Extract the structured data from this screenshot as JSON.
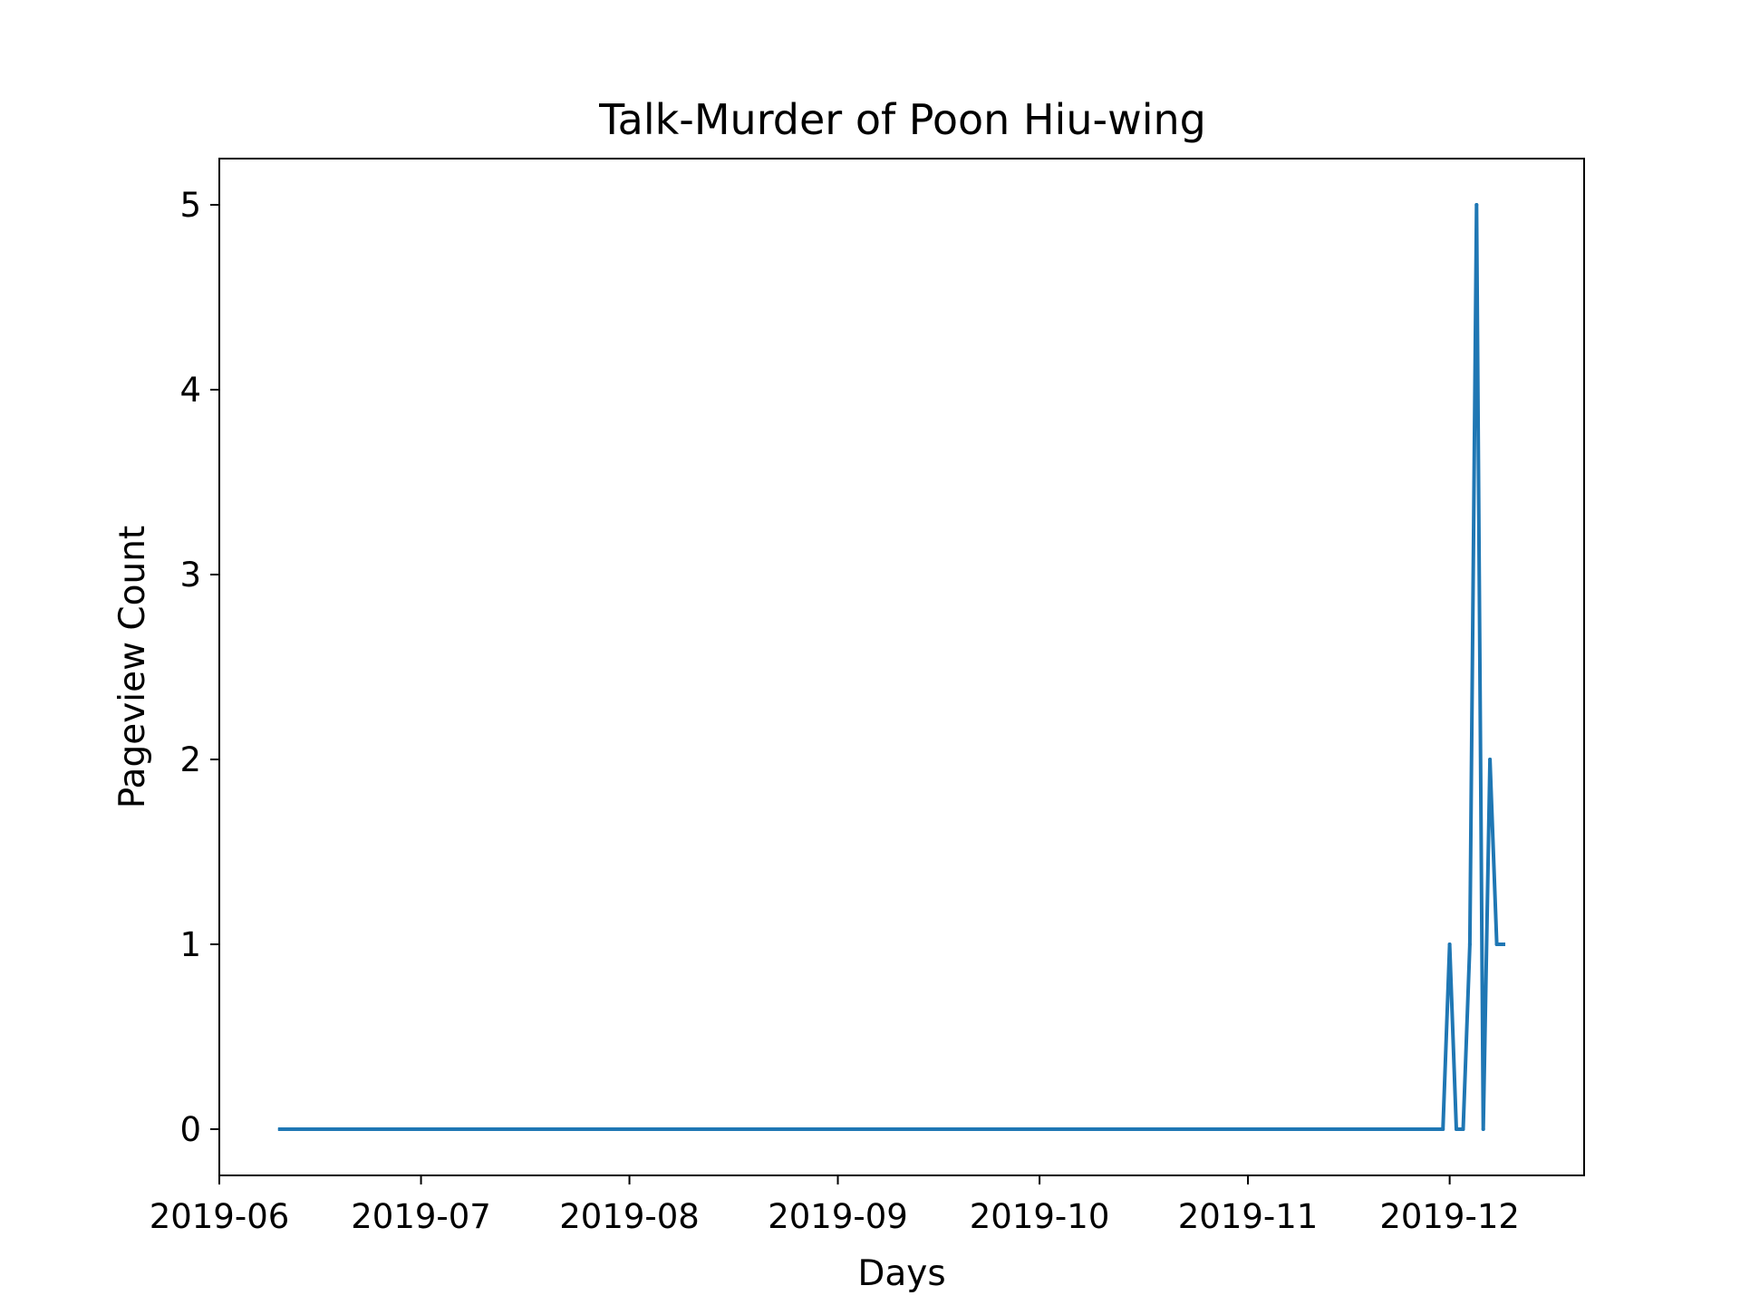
{
  "chart_data": {
    "type": "line",
    "title": "Talk-Murder of Poon Hiu-wing",
    "xlabel": "Days",
    "ylabel": "Pageview Count",
    "xlim": [
      "2019-06-01",
      "2019-12-21"
    ],
    "ylim": [
      -0.25,
      5.25
    ],
    "x_ticks": [
      "2019-06",
      "2019-07",
      "2019-08",
      "2019-09",
      "2019-10",
      "2019-11",
      "2019-12"
    ],
    "y_ticks": [
      "0",
      "1",
      "2",
      "3",
      "4",
      "5"
    ],
    "grid": false,
    "series": [
      {
        "color": "#1f77b4",
        "points": [
          {
            "x": "2019-06-10",
            "y": 0
          },
          {
            "x": "2019-11-30",
            "y": 0
          },
          {
            "x": "2019-12-01",
            "y": 1
          },
          {
            "x": "2019-12-02",
            "y": 0
          },
          {
            "x": "2019-12-03",
            "y": 0
          },
          {
            "x": "2019-12-04",
            "y": 1
          },
          {
            "x": "2019-12-05",
            "y": 5
          },
          {
            "x": "2019-12-06",
            "y": 0
          },
          {
            "x": "2019-12-07",
            "y": 2
          },
          {
            "x": "2019-12-08",
            "y": 1
          },
          {
            "x": "2019-12-09",
            "y": 1
          }
        ]
      }
    ]
  }
}
